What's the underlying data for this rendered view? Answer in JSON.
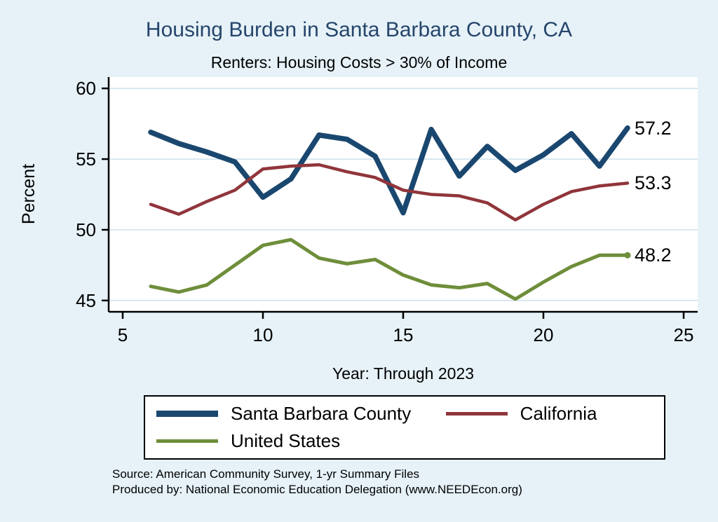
{
  "title": "Housing Burden in Santa Barbara County, CA",
  "subtitle": "Renters: Housing Costs > 30% of Income",
  "colors": {
    "background": "#e6f2f8",
    "plot_background": "#ffffff",
    "gridline": "#cfe3ee",
    "axis": "#000000",
    "title_text": "#26456b",
    "santa_barbara": "#1a476f",
    "california": "#90353b",
    "united_states": "#6e8e3a"
  },
  "chart_data": {
    "type": "line",
    "title": "Housing Burden in Santa Barbara County, CA",
    "subtitle": "Renters: Housing Costs > 30% of Income",
    "xlabel": "Year: Through 2023",
    "ylabel": "Percent",
    "xlim": [
      5,
      25
    ],
    "ylim": [
      44.2,
      60.8
    ],
    "xticks": [
      5,
      10,
      15,
      20,
      25
    ],
    "yticks": [
      45,
      50,
      55,
      60
    ],
    "grid": "horizontal",
    "legend_position": "bottom",
    "x": [
      6,
      7,
      8,
      9,
      10,
      11,
      12,
      13,
      14,
      15,
      16,
      17,
      18,
      19,
      20,
      21,
      22,
      23
    ],
    "series": [
      {
        "id": "santa-barbara-county",
        "name": "Santa Barbara County",
        "color": "#1a476f",
        "end_label": "57.2",
        "values": [
          56.9,
          56.1,
          55.5,
          54.8,
          52.3,
          53.6,
          56.7,
          56.4,
          55.2,
          51.2,
          57.1,
          53.8,
          55.9,
          54.2,
          55.3,
          56.8,
          54.5,
          57.2
        ]
      },
      {
        "id": "california",
        "name": "California",
        "color": "#90353b",
        "end_label": "53.3",
        "values": [
          51.8,
          51.1,
          52.0,
          52.8,
          54.3,
          54.5,
          54.6,
          54.1,
          53.7,
          52.8,
          52.5,
          52.4,
          51.9,
          50.7,
          51.8,
          52.7,
          53.1,
          53.3
        ]
      },
      {
        "id": "united-states",
        "name": "United States",
        "color": "#6e8e3a",
        "end_label": "48.2",
        "values": [
          46.0,
          45.6,
          46.1,
          47.5,
          48.9,
          49.3,
          48.0,
          47.6,
          47.9,
          46.8,
          46.1,
          45.9,
          46.2,
          45.1,
          46.3,
          47.4,
          48.2,
          48.2
        ]
      }
    ]
  },
  "legend": {
    "items": [
      {
        "label": "Santa Barbara County"
      },
      {
        "label": "California"
      },
      {
        "label": "United States"
      }
    ]
  },
  "notes": {
    "source": "Source: American Community Survey, 1-yr Summary Files",
    "produced_by": "Produced by: National Economic Education Delegation (www.NEEDEcon.org)"
  }
}
